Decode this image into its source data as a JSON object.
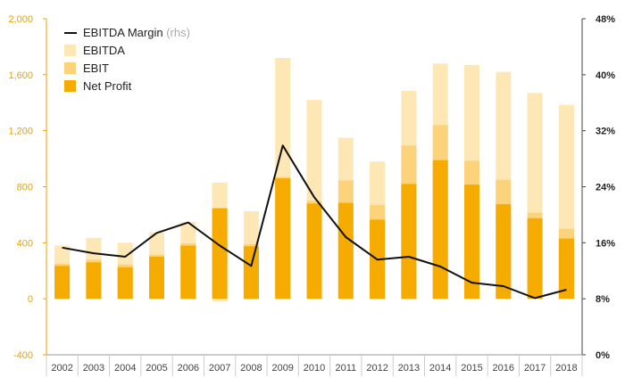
{
  "chart_data": {
    "type": "bar",
    "stacked_overlay": true,
    "categories": [
      "2002",
      "2003",
      "2004",
      "2005",
      "2006",
      "2007",
      "2008",
      "2009",
      "2010",
      "2011",
      "2012",
      "2013",
      "2014",
      "2015",
      "2016",
      "2017",
      "2018"
    ],
    "series": [
      {
        "name": "EBITDA",
        "axis": "left",
        "type": "bar",
        "color": "#fde7b5",
        "values": [
          380,
          435,
          400,
          475,
          550,
          830,
          625,
          1720,
          1420,
          1150,
          980,
          1485,
          1680,
          1670,
          1620,
          1470,
          1385
        ]
      },
      {
        "name": "EBIT",
        "axis": "left",
        "type": "bar",
        "color": "#fcd27a",
        "values": [
          250,
          280,
          245,
          315,
          395,
          650,
          390,
          870,
          700,
          845,
          670,
          1095,
          1240,
          985,
          850,
          615,
          500
        ]
      },
      {
        "name": "Net Profit",
        "axis": "left",
        "type": "bar",
        "color": "#f6ab00",
        "values": [
          235,
          260,
          225,
          300,
          380,
          645,
          375,
          860,
          680,
          685,
          565,
          820,
          990,
          815,
          675,
          575,
          430
        ],
        "negative_extension": {
          "2007": -20
        }
      },
      {
        "name": "EBITDA Margin",
        "name_suffix": "(rhs)",
        "axis": "right",
        "type": "line",
        "color": "#111111",
        "values": [
          15.3,
          14.5,
          14.0,
          17.4,
          18.9,
          15.6,
          12.7,
          29.9,
          22.5,
          16.8,
          13.6,
          14.0,
          12.6,
          10.3,
          9.8,
          8.1,
          9.3
        ]
      }
    ],
    "left_axis": {
      "min": -400,
      "max": 2000,
      "ticks": [
        "-400",
        "0",
        "400",
        "800",
        "1,200",
        "1,600",
        "2,000"
      ],
      "tick_values": [
        -400,
        0,
        400,
        800,
        1200,
        1600,
        2000
      ]
    },
    "right_axis": {
      "min": 0,
      "max": 48,
      "ticks": [
        "0%",
        "8%",
        "16%",
        "24%",
        "32%",
        "40%",
        "48%"
      ],
      "tick_values": [
        0,
        8,
        16,
        24,
        32,
        40,
        48
      ]
    },
    "legend_position": "top-left",
    "grid": false,
    "axis_color": "#e8a300"
  }
}
